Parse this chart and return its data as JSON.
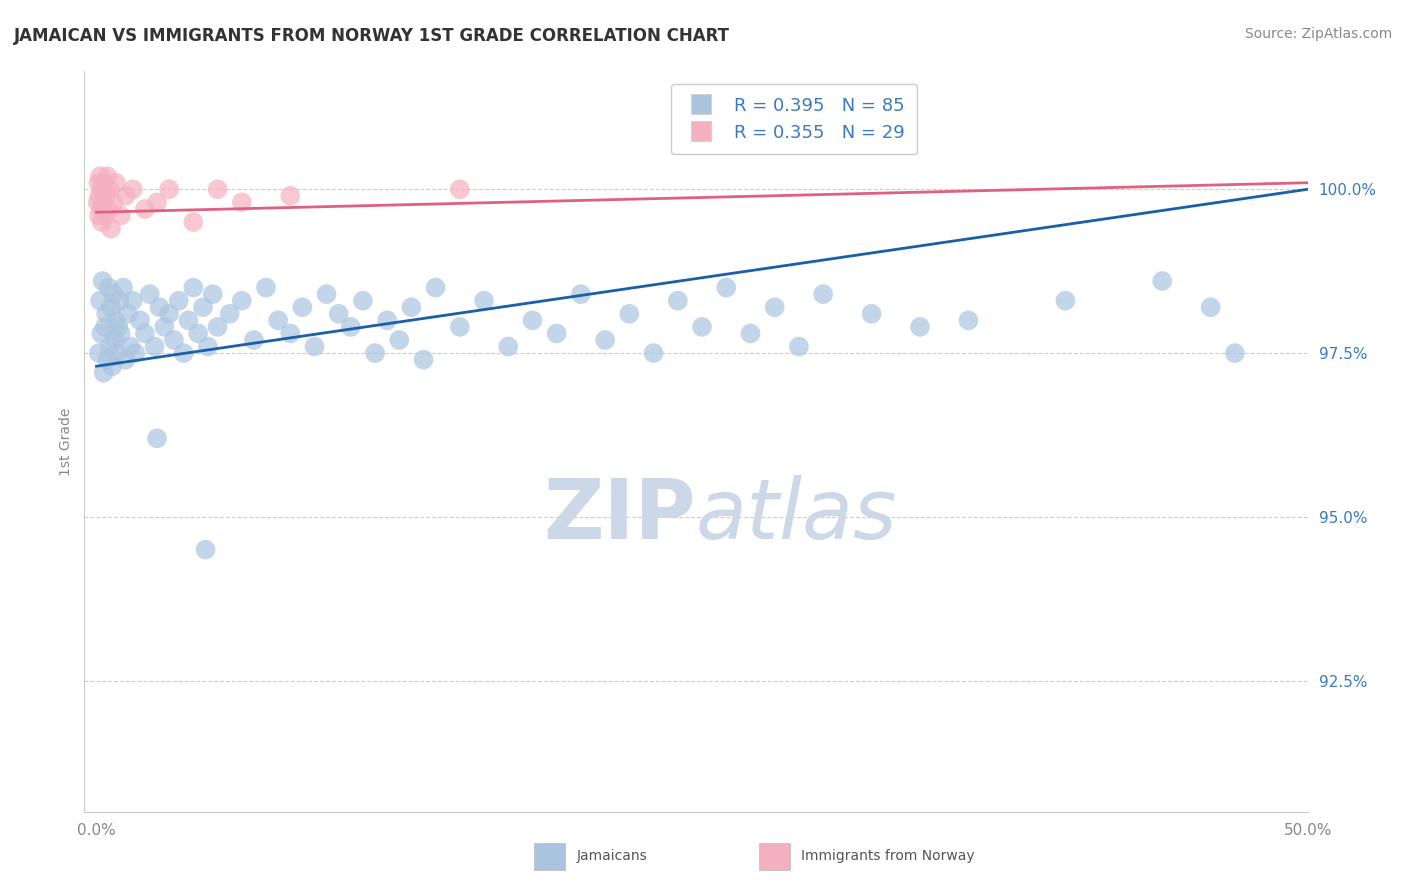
{
  "title": "JAMAICAN VS IMMIGRANTS FROM NORWAY 1ST GRADE CORRELATION CHART",
  "source": "Source: ZipAtlas.com",
  "xlabel_jamaicans": "Jamaicans",
  "xlabel_norway": "Immigrants from Norway",
  "ylabel": "1st Grade",
  "xlim": [
    -0.5,
    50.0
  ],
  "ylim": [
    90.5,
    101.8
  ],
  "yticks": [
    92.5,
    95.0,
    97.5,
    100.0
  ],
  "ytick_labels": [
    "92.5%",
    "95.0%",
    "97.5%",
    "100.0%"
  ],
  "xtick_labels": [
    "0.0%",
    "50.0%"
  ],
  "xticks": [
    0.0,
    50.0
  ],
  "R_blue": 0.395,
  "N_blue": 85,
  "R_pink": 0.355,
  "N_pink": 29,
  "blue_color": "#aac4e0",
  "blue_line_color": "#1a5fa8",
  "pink_color": "#f5b0c0",
  "pink_line_color": "#e06080",
  "legend_text_color": "#3a7abf",
  "background_color": "#ffffff",
  "title_fontsize": 12,
  "axis_label_fontsize": 10,
  "tick_fontsize": 11,
  "legend_fontsize": 13,
  "source_fontsize": 10,
  "watermark_color": "#ccd8e8",
  "watermark_fontsize": 60,
  "blue_trend_y0": 97.3,
  "blue_trend_y1": 100.0,
  "pink_trend_y0": 99.65,
  "pink_trend_y1": 100.1,
  "blue_points": [
    [
      0.1,
      97.5
    ],
    [
      0.15,
      98.3
    ],
    [
      0.2,
      97.8
    ],
    [
      0.25,
      98.6
    ],
    [
      0.3,
      97.2
    ],
    [
      0.35,
      97.9
    ],
    [
      0.4,
      98.1
    ],
    [
      0.45,
      97.4
    ],
    [
      0.5,
      98.5
    ],
    [
      0.55,
      97.6
    ],
    [
      0.6,
      98.2
    ],
    [
      0.65,
      97.3
    ],
    [
      0.7,
      98.4
    ],
    [
      0.75,
      97.7
    ],
    [
      0.8,
      98.0
    ],
    [
      0.85,
      97.5
    ],
    [
      0.9,
      97.9
    ],
    [
      0.95,
      98.3
    ],
    [
      1.0,
      97.8
    ],
    [
      1.1,
      98.5
    ],
    [
      1.2,
      97.4
    ],
    [
      1.3,
      98.1
    ],
    [
      1.4,
      97.6
    ],
    [
      1.5,
      98.3
    ],
    [
      1.6,
      97.5
    ],
    [
      1.8,
      98.0
    ],
    [
      2.0,
      97.8
    ],
    [
      2.2,
      98.4
    ],
    [
      2.4,
      97.6
    ],
    [
      2.6,
      98.2
    ],
    [
      2.8,
      97.9
    ],
    [
      3.0,
      98.1
    ],
    [
      3.2,
      97.7
    ],
    [
      3.4,
      98.3
    ],
    [
      3.6,
      97.5
    ],
    [
      3.8,
      98.0
    ],
    [
      4.0,
      98.5
    ],
    [
      4.2,
      97.8
    ],
    [
      4.4,
      98.2
    ],
    [
      4.6,
      97.6
    ],
    [
      4.8,
      98.4
    ],
    [
      5.0,
      97.9
    ],
    [
      5.5,
      98.1
    ],
    [
      6.0,
      98.3
    ],
    [
      6.5,
      97.7
    ],
    [
      7.0,
      98.5
    ],
    [
      7.5,
      98.0
    ],
    [
      8.0,
      97.8
    ],
    [
      8.5,
      98.2
    ],
    [
      9.0,
      97.6
    ],
    [
      9.5,
      98.4
    ],
    [
      10.0,
      98.1
    ],
    [
      10.5,
      97.9
    ],
    [
      11.0,
      98.3
    ],
    [
      11.5,
      97.5
    ],
    [
      12.0,
      98.0
    ],
    [
      12.5,
      97.7
    ],
    [
      13.0,
      98.2
    ],
    [
      13.5,
      97.4
    ],
    [
      14.0,
      98.5
    ],
    [
      15.0,
      97.9
    ],
    [
      16.0,
      98.3
    ],
    [
      17.0,
      97.6
    ],
    [
      18.0,
      98.0
    ],
    [
      19.0,
      97.8
    ],
    [
      20.0,
      98.4
    ],
    [
      21.0,
      97.7
    ],
    [
      22.0,
      98.1
    ],
    [
      23.0,
      97.5
    ],
    [
      24.0,
      98.3
    ],
    [
      25.0,
      97.9
    ],
    [
      26.0,
      98.5
    ],
    [
      27.0,
      97.8
    ],
    [
      28.0,
      98.2
    ],
    [
      29.0,
      97.6
    ],
    [
      30.0,
      98.4
    ],
    [
      32.0,
      98.1
    ],
    [
      34.0,
      97.9
    ],
    [
      36.0,
      98.0
    ],
    [
      40.0,
      98.3
    ],
    [
      44.0,
      98.6
    ],
    [
      46.0,
      98.2
    ],
    [
      47.0,
      97.5
    ],
    [
      4.5,
      94.5
    ],
    [
      2.5,
      96.2
    ]
  ],
  "pink_points": [
    [
      0.05,
      99.8
    ],
    [
      0.08,
      100.1
    ],
    [
      0.1,
      99.6
    ],
    [
      0.12,
      99.9
    ],
    [
      0.15,
      100.2
    ],
    [
      0.18,
      99.7
    ],
    [
      0.2,
      100.0
    ],
    [
      0.22,
      99.5
    ],
    [
      0.25,
      99.8
    ],
    [
      0.3,
      100.1
    ],
    [
      0.35,
      99.6
    ],
    [
      0.4,
      99.9
    ],
    [
      0.45,
      100.2
    ],
    [
      0.5,
      99.7
    ],
    [
      0.55,
      100.0
    ],
    [
      0.6,
      99.4
    ],
    [
      0.7,
      99.8
    ],
    [
      0.8,
      100.1
    ],
    [
      1.0,
      99.6
    ],
    [
      1.2,
      99.9
    ],
    [
      1.5,
      100.0
    ],
    [
      2.0,
      99.7
    ],
    [
      2.5,
      99.8
    ],
    [
      3.0,
      100.0
    ],
    [
      4.0,
      99.5
    ],
    [
      5.0,
      100.0
    ],
    [
      6.0,
      99.8
    ],
    [
      8.0,
      99.9
    ],
    [
      15.0,
      100.0
    ]
  ]
}
